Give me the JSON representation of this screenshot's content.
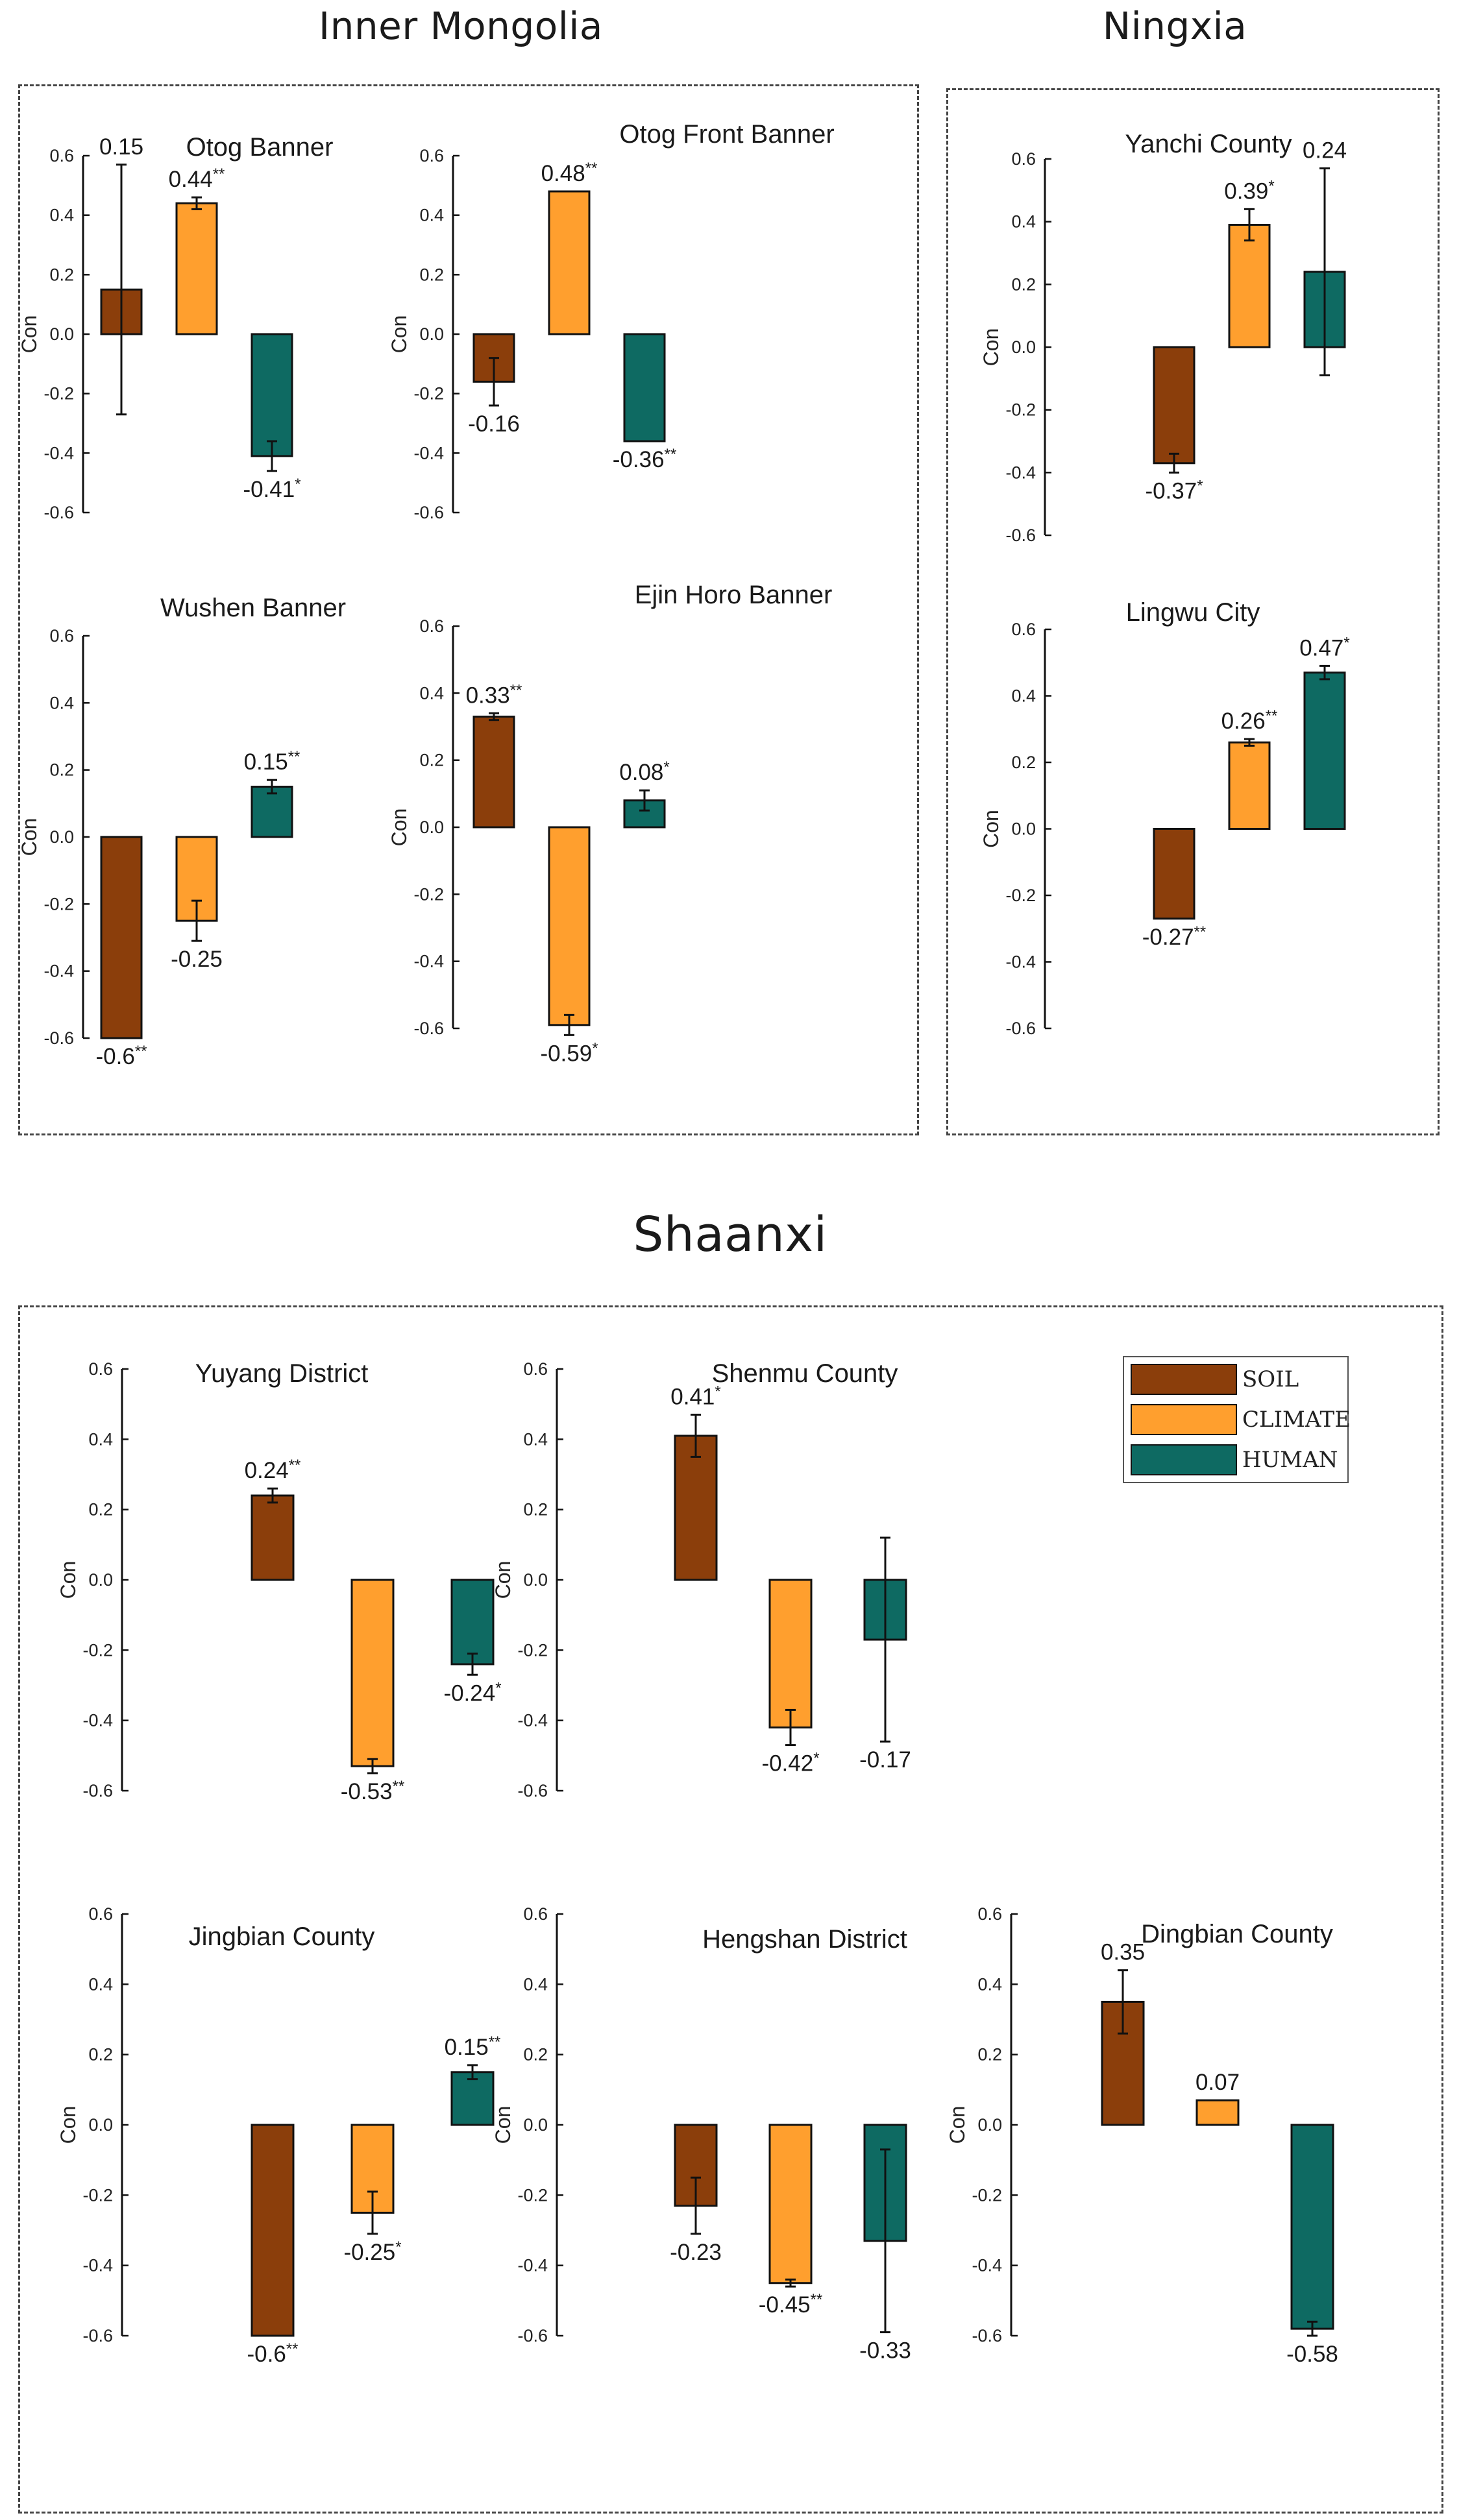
{
  "regions": {
    "inner_mongolia": "Inner Mongolia",
    "ningxia": "Ningxia",
    "shaanxi": "Shaanxi"
  },
  "colors": {
    "soil": "#8B3E0B",
    "climate": "#FF9F2E",
    "human": "#0E6A62"
  },
  "legend": {
    "items": [
      {
        "label": "SOIL",
        "color": "#8B3E0B"
      },
      {
        "label": "CLIMATE",
        "color": "#FF9F2E"
      },
      {
        "label": "HUMAN",
        "color": "#0E6A62"
      }
    ]
  },
  "chart_data": [
    {
      "id": "otog-banner",
      "type": "bar",
      "title": "Otog Banner",
      "ylabel": "Con",
      "ylim": [
        -0.6,
        0.6
      ],
      "yticks": [
        "0.6",
        "0.4",
        "0.2",
        "0.0",
        "-0.2",
        "-0.4",
        "-0.6"
      ],
      "categories": [
        "SOIL",
        "CLIMATE",
        "HUMAN"
      ],
      "values": [
        0.15,
        0.44,
        -0.41
      ],
      "errors": [
        0.42,
        0.02,
        0.05
      ],
      "labels": [
        "0.15",
        "0.44",
        "-0.41"
      ],
      "significance": [
        "",
        "**",
        "*"
      ]
    },
    {
      "id": "otog-front-banner",
      "type": "bar",
      "title": "Otog Front Banner",
      "ylabel": "Con",
      "ylim": [
        -0.6,
        0.6
      ],
      "yticks": [
        "0.6",
        "0.4",
        "0.2",
        "0.0",
        "-0.2",
        "-0.4",
        "-0.6"
      ],
      "categories": [
        "SOIL",
        "CLIMATE",
        "HUMAN"
      ],
      "values": [
        -0.16,
        0.48,
        -0.36
      ],
      "errors": [
        0.08,
        0.0,
        0.0
      ],
      "labels": [
        "-0.16",
        "0.48",
        "-0.36"
      ],
      "significance": [
        "",
        "**",
        "**"
      ]
    },
    {
      "id": "wushen-banner",
      "type": "bar",
      "title": "Wushen Banner",
      "ylabel": "Con",
      "ylim": [
        -0.6,
        0.6
      ],
      "yticks": [
        "0.6",
        "0.4",
        "0.2",
        "0.0",
        "-0.2",
        "-0.4",
        "-0.6"
      ],
      "categories": [
        "SOIL",
        "CLIMATE",
        "HUMAN"
      ],
      "values": [
        -0.6,
        -0.25,
        0.15
      ],
      "errors": [
        0.0,
        0.06,
        0.02
      ],
      "labels": [
        "-0.6",
        "-0.25",
        "0.15"
      ],
      "significance": [
        "**",
        "",
        "**"
      ]
    },
    {
      "id": "ejin-horo-banner",
      "type": "bar",
      "title": "Ejin Horo Banner",
      "ylabel": "Con",
      "ylim": [
        -0.6,
        0.6
      ],
      "yticks": [
        "0.6",
        "0.4",
        "0.2",
        "0.0",
        "-0.2",
        "-0.4",
        "-0.6"
      ],
      "categories": [
        "SOIL",
        "CLIMATE",
        "HUMAN"
      ],
      "values": [
        0.33,
        -0.59,
        0.08
      ],
      "errors": [
        0.01,
        0.03,
        0.03
      ],
      "labels": [
        "0.33",
        "-0.59",
        "0.08"
      ],
      "significance": [
        "**",
        "*",
        "*"
      ]
    },
    {
      "id": "yanchi-county",
      "type": "bar",
      "title": "Yanchi County",
      "ylabel": "Con",
      "ylim": [
        -0.6,
        0.6
      ],
      "yticks": [
        "0.6",
        "0.4",
        "0.2",
        "0.0",
        "-0.2",
        "-0.4",
        "-0.6"
      ],
      "categories": [
        "SOIL",
        "CLIMATE",
        "HUMAN"
      ],
      "values": [
        -0.37,
        0.39,
        0.24
      ],
      "errors": [
        0.03,
        0.05,
        0.33
      ],
      "labels": [
        "-0.37",
        "0.39",
        "0.24"
      ],
      "significance": [
        "*",
        "*",
        ""
      ]
    },
    {
      "id": "lingwu-city",
      "type": "bar",
      "title": "Lingwu City",
      "ylabel": "Con",
      "ylim": [
        -0.6,
        0.6
      ],
      "yticks": [
        "0.6",
        "0.4",
        "0.2",
        "0.0",
        "-0.2",
        "-0.4",
        "-0.6"
      ],
      "categories": [
        "SOIL",
        "CLIMATE",
        "HUMAN"
      ],
      "values": [
        -0.27,
        0.26,
        0.47
      ],
      "errors": [
        0.0,
        0.01,
        0.02
      ],
      "labels": [
        "-0.27",
        "0.26",
        "0.47"
      ],
      "significance": [
        "**",
        "**",
        "*"
      ]
    },
    {
      "id": "yuyang-district",
      "type": "bar",
      "title": "Yuyang District",
      "ylabel": "Con",
      "ylim": [
        -0.6,
        0.6
      ],
      "yticks": [
        "0.6",
        "0.4",
        "0.2",
        "0.0",
        "-0.2",
        "-0.4",
        "-0.6"
      ],
      "categories": [
        "SOIL",
        "CLIMATE",
        "HUMAN"
      ],
      "values": [
        0.24,
        -0.53,
        -0.24
      ],
      "errors": [
        0.02,
        0.02,
        0.03
      ],
      "labels": [
        "0.24",
        "-0.53",
        "-0.24"
      ],
      "significance": [
        "**",
        "**",
        "*"
      ]
    },
    {
      "id": "shenmu-county",
      "type": "bar",
      "title": "Shenmu County",
      "ylabel": "Con",
      "ylim": [
        -0.6,
        0.6
      ],
      "yticks": [
        "0.6",
        "0.4",
        "0.2",
        "0.0",
        "-0.2",
        "-0.4",
        "-0.6"
      ],
      "categories": [
        "SOIL",
        "CLIMATE",
        "HUMAN"
      ],
      "values": [
        0.41,
        -0.42,
        -0.17
      ],
      "errors": [
        0.06,
        0.05,
        0.29
      ],
      "labels": [
        "0.41",
        "-0.42",
        "-0.17"
      ],
      "significance": [
        "*",
        "*",
        ""
      ]
    },
    {
      "id": "jingbian-county",
      "type": "bar",
      "title": "Jingbian County",
      "ylabel": "Con",
      "ylim": [
        -0.6,
        0.6
      ],
      "yticks": [
        "0.6",
        "0.4",
        "0.2",
        "0.0",
        "-0.2",
        "-0.4",
        "-0.6"
      ],
      "categories": [
        "SOIL",
        "CLIMATE",
        "HUMAN"
      ],
      "values": [
        -0.6,
        -0.25,
        0.15
      ],
      "errors": [
        0.0,
        0.06,
        0.02
      ],
      "labels": [
        "-0.6",
        "-0.25",
        "0.15"
      ],
      "significance": [
        "**",
        "*",
        "**"
      ]
    },
    {
      "id": "hengshan-district",
      "type": "bar",
      "title": "Hengshan District",
      "ylabel": "Con",
      "ylim": [
        -0.6,
        0.6
      ],
      "yticks": [
        "0.6",
        "0.4",
        "0.2",
        "0.0",
        "-0.2",
        "-0.4",
        "-0.6"
      ],
      "categories": [
        "SOIL",
        "CLIMATE",
        "HUMAN"
      ],
      "values": [
        -0.23,
        -0.45,
        -0.33
      ],
      "errors": [
        0.08,
        0.01,
        0.26
      ],
      "labels": [
        "-0.23",
        "-0.45",
        "-0.33"
      ],
      "significance": [
        "",
        "**",
        ""
      ]
    },
    {
      "id": "dingbian-county",
      "type": "bar",
      "title": "Dingbian County",
      "ylabel": "Con",
      "ylim": [
        -0.6,
        0.6
      ],
      "yticks": [
        "0.6",
        "0.4",
        "0.2",
        "0.0",
        "-0.2",
        "-0.4",
        "-0.6"
      ],
      "categories": [
        "SOIL",
        "CLIMATE",
        "HUMAN"
      ],
      "values": [
        0.35,
        0.07,
        -0.58
      ],
      "errors": [
        0.09,
        0.0,
        0.02
      ],
      "labels": [
        "0.35",
        "0.07",
        "-0.58"
      ],
      "significance": [
        "",
        "",
        ""
      ]
    }
  ]
}
